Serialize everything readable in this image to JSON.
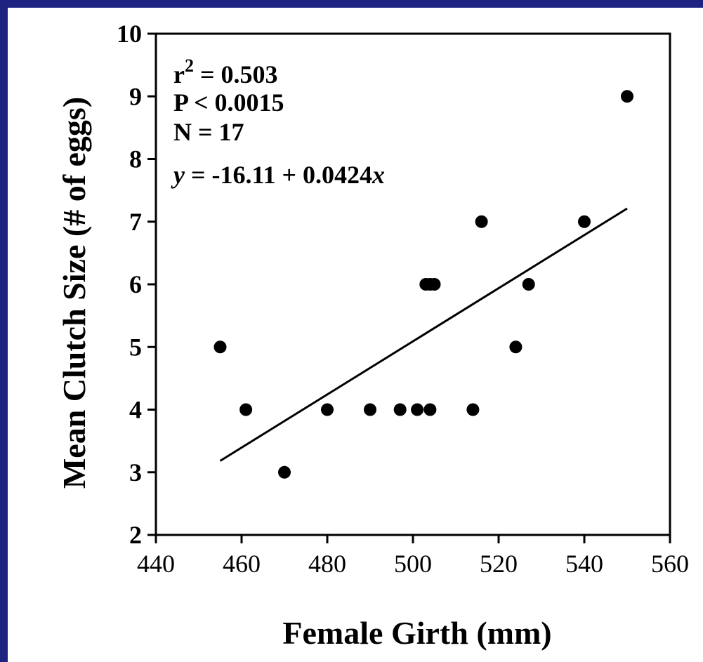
{
  "chart_data": {
    "type": "scatter",
    "title": "",
    "xlabel": "Female Girth (mm)",
    "ylabel": "Mean Clutch Size (# of eggs)",
    "xlim": [
      440,
      560
    ],
    "ylim": [
      2,
      10
    ],
    "x_ticks": [
      "440",
      "460",
      "480",
      "500",
      "520",
      "540",
      "560"
    ],
    "y_ticks": [
      "2",
      "3",
      "4",
      "5",
      "6",
      "7",
      "8",
      "9",
      "10"
    ],
    "grid": false,
    "legend": "none",
    "points": [
      {
        "x": 455,
        "y": 5
      },
      {
        "x": 461,
        "y": 4
      },
      {
        "x": 470,
        "y": 3
      },
      {
        "x": 480,
        "y": 4
      },
      {
        "x": 490,
        "y": 4
      },
      {
        "x": 497,
        "y": 4
      },
      {
        "x": 501,
        "y": 4
      },
      {
        "x": 503,
        "y": 6
      },
      {
        "x": 504,
        "y": 6
      },
      {
        "x": 504,
        "y": 4
      },
      {
        "x": 505,
        "y": 6
      },
      {
        "x": 514,
        "y": 4
      },
      {
        "x": 516,
        "y": 7
      },
      {
        "x": 524,
        "y": 5
      },
      {
        "x": 527,
        "y": 6
      },
      {
        "x": 540,
        "y": 7
      },
      {
        "x": 550,
        "y": 9
      }
    ],
    "regression": {
      "intercept": -16.11,
      "slope": 0.0424,
      "x_range": [
        455,
        550
      ]
    },
    "annotations": {
      "r2_label": "r",
      "r2_exp": "2",
      "r2_value": " = 0.503",
      "p_value": "P < 0.0015",
      "n_value": "N = 17",
      "eq_y": "y",
      "eq_middle": " = -16.11 + 0.0424",
      "eq_x": "x"
    }
  },
  "colors": {
    "background_border": "#1e2280",
    "plot_background": "#ffffff",
    "marks": "#000000"
  }
}
